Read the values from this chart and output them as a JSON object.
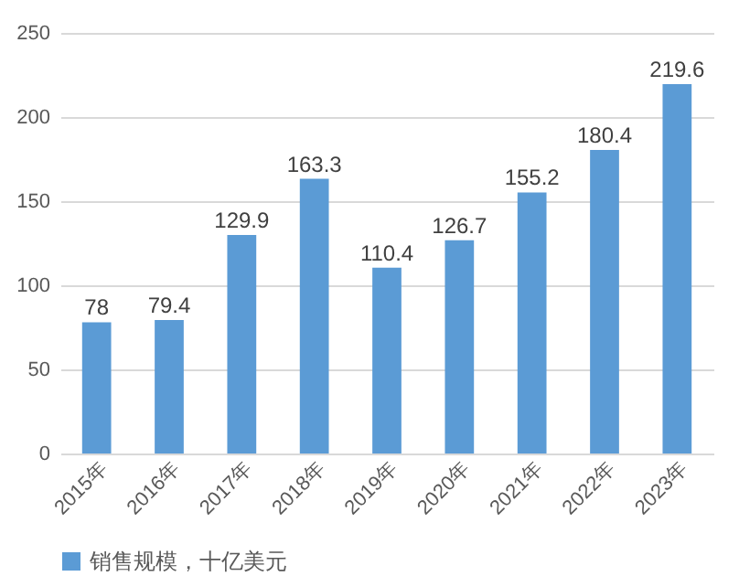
{
  "chart_data": {
    "type": "bar",
    "categories": [
      "2015年",
      "2016年",
      "2017年",
      "2018年",
      "2019年",
      "2020年",
      "2021年",
      "2022年",
      "2023年"
    ],
    "series": [
      {
        "name": "销售规模，十亿美元",
        "color": "#5b9bd5",
        "values": [
          78,
          79.4,
          129.9,
          163.3,
          110.4,
          126.7,
          155.2,
          180.4,
          219.6
        ]
      }
    ],
    "ylim": [
      0,
      250
    ],
    "yticks": [
      0,
      50,
      100,
      150,
      200,
      250
    ],
    "grid": "y",
    "legend": "bottom",
    "data_labels": true
  }
}
